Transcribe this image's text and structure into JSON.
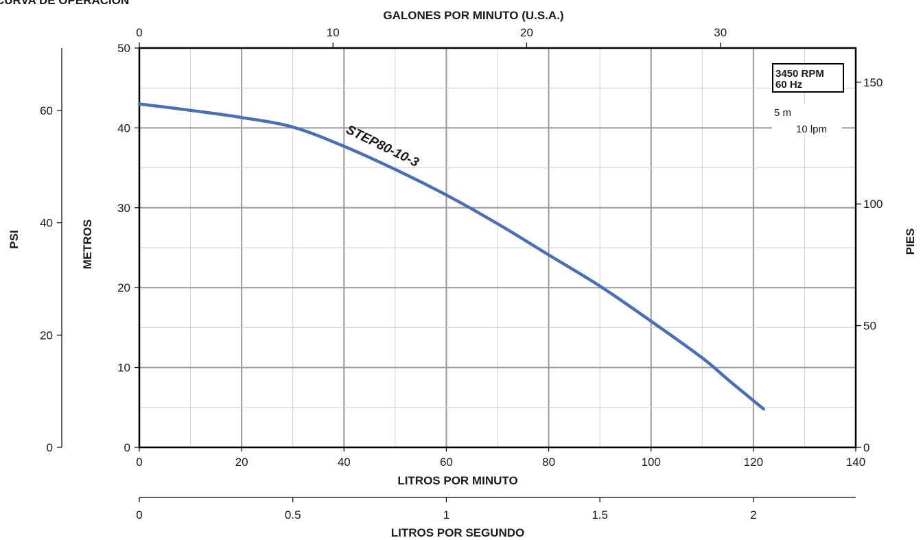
{
  "page_title": "CURVA DE OPERACION",
  "colors": {
    "curve": "#4a6fb5",
    "frame": "#000000"
  },
  "chart_data": {
    "type": "line",
    "title": "CURVA DE OPERACION",
    "xlabel": "LITROS POR MINUTO",
    "ylabel": "METROS",
    "xlim": [
      0,
      140
    ],
    "ylim": [
      0,
      50
    ],
    "grid": true,
    "x_ticks": [
      0,
      20,
      40,
      60,
      80,
      100,
      120,
      140
    ],
    "y_ticks": [
      0,
      10,
      20,
      30,
      40,
      50
    ],
    "secondary_axes": {
      "top": {
        "label": "GALONES POR MINUTO (U.S.A.)",
        "ticks": [
          0,
          10,
          20,
          30
        ],
        "unit_lpm": 3.785
      },
      "right": {
        "label": "PIES",
        "ticks": [
          0,
          50,
          100,
          150
        ],
        "unit_m": 0.3048
      },
      "left": {
        "label": "PSI",
        "ticks": [
          0,
          20,
          40,
          60
        ],
        "unit_m": 0.70307
      },
      "bottom": {
        "label": "LITROS POR SEGUNDO",
        "ticks": [
          "0",
          "0.5",
          "1",
          "1.5",
          "2"
        ],
        "values": [
          0,
          0.5,
          1,
          1.5,
          2
        ],
        "max": 2.3333
      }
    },
    "series": [
      {
        "name": "STEP80-10-3",
        "x": [
          0,
          10,
          20,
          30,
          40,
          50,
          60,
          70,
          80,
          90,
          100,
          110,
          115,
          122
        ],
        "y": [
          43,
          42.2,
          41.3,
          40.1,
          37.7,
          34.8,
          31.6,
          28.0,
          24.1,
          20.2,
          15.8,
          11.2,
          8.5,
          4.8
        ]
      }
    ],
    "annotations": {
      "rpm_box": [
        "3450 RPM",
        "60 Hz"
      ],
      "scale_note": [
        "5 m",
        "10 lpm"
      ]
    }
  }
}
